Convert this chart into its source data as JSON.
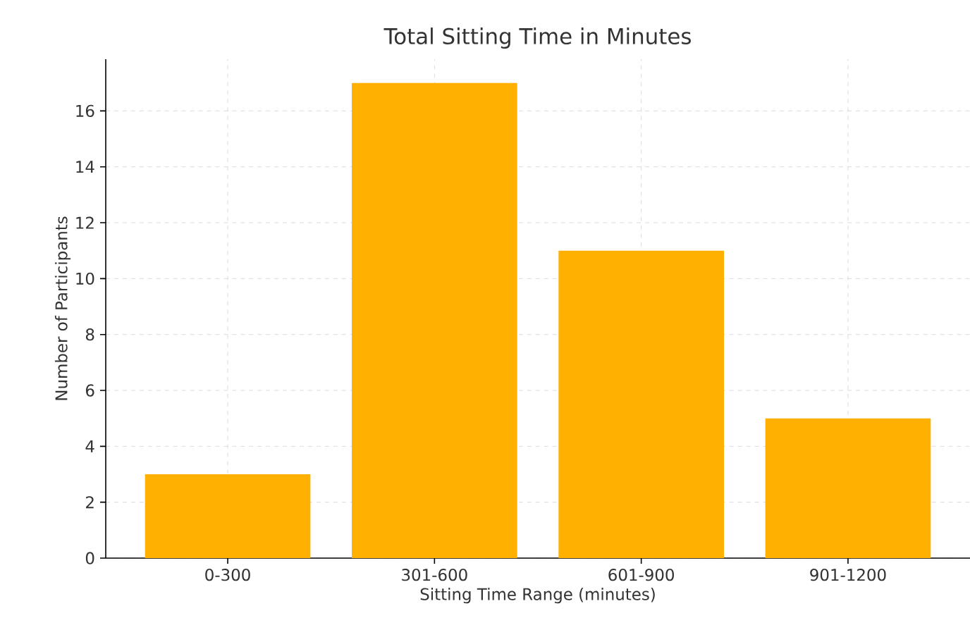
{
  "chart_data": {
    "type": "bar",
    "title": "Total Sitting Time in Minutes",
    "xlabel": "Sitting Time Range (minutes)",
    "ylabel": "Number of Participants",
    "categories": [
      "0-300",
      "301-600",
      "601-900",
      "901-1200"
    ],
    "values": [
      3,
      17,
      11,
      5
    ],
    "color": "#ffb000",
    "ylim": [
      0,
      17.85
    ],
    "yticks": [
      0,
      2,
      4,
      6,
      8,
      10,
      12,
      14,
      16
    ],
    "grid": true
  }
}
